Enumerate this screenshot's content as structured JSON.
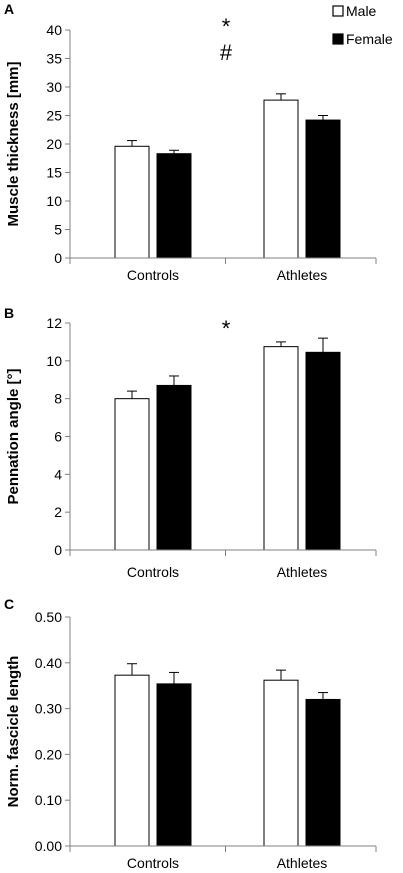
{
  "colors": {
    "male": "#ffffff",
    "female": "#000000",
    "axis": "#808080"
  },
  "legend": [
    {
      "key": "male",
      "label": "Male"
    },
    {
      "key": "female",
      "label": "Female"
    }
  ],
  "chart_data": [
    {
      "type": "bar",
      "panel": "A",
      "ylabel": "Muscle thickness [mm]",
      "categories": [
        "Controls",
        "Athletes"
      ],
      "ylim": [
        0,
        40
      ],
      "yticks": [
        "0",
        "5",
        "10",
        "15",
        "20",
        "25",
        "30",
        "35",
        "40"
      ],
      "series": [
        {
          "name": "Male",
          "key": "male",
          "values": [
            19.6,
            27.7
          ],
          "errors": [
            1.0,
            1.1
          ]
        },
        {
          "name": "Female",
          "key": "female",
          "values": [
            18.3,
            24.2
          ],
          "errors": [
            0.6,
            0.8
          ]
        }
      ],
      "annotations": [
        "*",
        "#"
      ]
    },
    {
      "type": "bar",
      "panel": "B",
      "ylabel": "Pennation angle [°]",
      "categories": [
        "Controls",
        "Athletes"
      ],
      "ylim": [
        0,
        12
      ],
      "yticks": [
        "0",
        "2",
        "4",
        "6",
        "8",
        "10",
        "12"
      ],
      "series": [
        {
          "name": "Male",
          "key": "male",
          "values": [
            8.0,
            10.75
          ],
          "errors": [
            0.4,
            0.25
          ]
        },
        {
          "name": "Female",
          "key": "female",
          "values": [
            8.7,
            10.45
          ],
          "errors": [
            0.5,
            0.75
          ]
        }
      ],
      "annotations": [
        "*"
      ]
    },
    {
      "type": "bar",
      "panel": "C",
      "ylabel": "Norm. fascicle length",
      "categories": [
        "Controls",
        "Athletes"
      ],
      "ylim": [
        0,
        0.5
      ],
      "yticks": [
        "0.00",
        "0.10",
        "0.20",
        "0.30",
        "0.40",
        "0.50"
      ],
      "series": [
        {
          "name": "Male",
          "key": "male",
          "values": [
            0.373,
            0.362
          ],
          "errors": [
            0.025,
            0.022
          ]
        },
        {
          "name": "Female",
          "key": "female",
          "values": [
            0.354,
            0.32
          ],
          "errors": [
            0.025,
            0.015
          ]
        }
      ],
      "annotations": []
    }
  ]
}
